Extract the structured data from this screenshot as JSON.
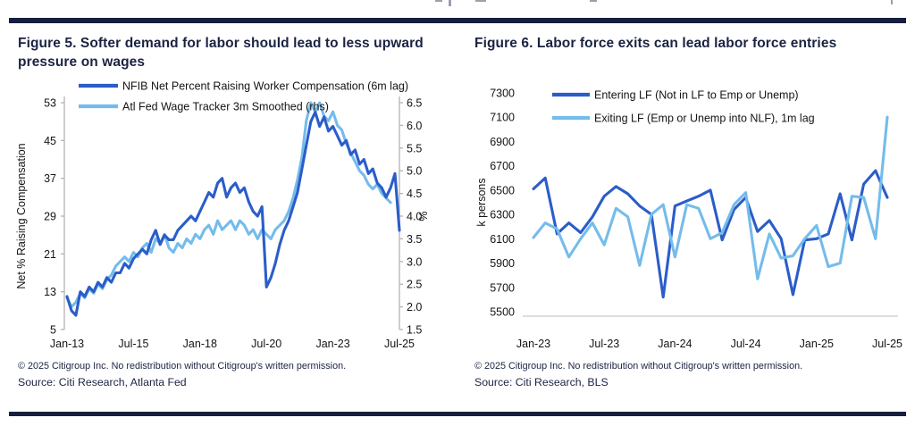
{
  "page": {
    "rule_color": "#171f3d"
  },
  "figure5": {
    "title": "Figure 5. Softer demand for labor should lead to less upward pressure on wages",
    "copyright": "© 2025 Citigroup Inc. No redistribution without Citigroup's written permission.",
    "source": "Source: Citi Research, Atlanta Fed"
  },
  "figure6": {
    "title": "Figure 6. Labor force exits can lead labor force entries",
    "copyright": "© 2025 Citigroup Inc. No redistribution without Citigroup's written permission.",
    "source": "Source: Citi Research, BLS"
  },
  "chart_data": [
    {
      "type": "line",
      "title": "Figure 5. Softer demand for labor should lead to less upward pressure on wages",
      "x_tick_labels": [
        "Jan-13",
        "Jul-15",
        "Jan-18",
        "Jul-20",
        "Jan-23",
        "Jul-25"
      ],
      "x_tick_months": [
        0,
        30,
        60,
        90,
        120,
        150
      ],
      "x_total_months": 150,
      "grid": false,
      "legend_position": "top-left-inside",
      "left_axis": {
        "label": "Net % Raising Compensation",
        "min": 5,
        "max": 53,
        "ticks": [
          "53",
          "45",
          "37",
          "29",
          "21",
          "13",
          "5"
        ]
      },
      "right_axis": {
        "label": "%",
        "min": 1.5,
        "max": 6.5,
        "ticks": [
          "6.5",
          "6.0",
          "5.5",
          "5.0",
          "4.5",
          "4.0",
          "3.5",
          "3.0",
          "2.5",
          "2.0",
          "1.5"
        ]
      },
      "series": [
        {
          "name": "NFIB Net Percent Raising Worker Compensation (6m lag)",
          "color": "#2b5dc9",
          "axis": "left",
          "step_months": 2,
          "values": [
            12,
            9,
            8,
            13,
            12,
            14,
            13,
            15,
            14,
            16,
            15,
            17,
            17,
            19,
            18,
            20,
            21,
            22,
            21,
            24,
            26,
            23,
            25,
            24,
            24,
            26,
            27,
            28,
            29,
            28,
            30,
            32,
            34,
            33,
            36,
            37,
            33,
            35,
            36,
            34,
            35,
            32,
            30,
            29,
            31,
            14,
            16,
            19,
            23,
            26,
            28,
            31,
            34,
            39,
            44,
            49,
            51,
            48,
            50,
            47,
            48,
            46,
            44,
            45,
            42,
            43,
            40,
            41,
            38,
            39,
            36,
            35,
            33,
            35,
            38,
            26
          ]
        },
        {
          "name": "Atl Fed Wage Tracker 3m Smoothed (rhs)",
          "color": "#74bceb",
          "axis": "right",
          "step_months": 2,
          "values": [
            2.2,
            2.0,
            2.1,
            2.3,
            2.2,
            2.4,
            2.3,
            2.5,
            2.4,
            2.6,
            2.7,
            2.9,
            3.0,
            3.1,
            3.0,
            3.2,
            3.1,
            3.3,
            3.4,
            3.2,
            3.5,
            3.4,
            3.6,
            3.3,
            3.2,
            3.4,
            3.3,
            3.5,
            3.4,
            3.6,
            3.5,
            3.7,
            3.8,
            3.6,
            3.9,
            3.7,
            3.8,
            3.9,
            3.7,
            3.9,
            3.8,
            3.6,
            3.7,
            3.5,
            3.7,
            3.6,
            3.5,
            3.7,
            3.8,
            3.9,
            4.1,
            4.4,
            4.8,
            5.3,
            6.1,
            6.5,
            6.3,
            6.5,
            6.2,
            6.1,
            6.3,
            6.0,
            5.9,
            5.6,
            5.4,
            5.2,
            5.0,
            4.9,
            4.7,
            4.6,
            4.7,
            4.5,
            4.4,
            4.3
          ]
        }
      ]
    },
    {
      "type": "line",
      "title": "Figure 6. Labor force exits can lead labor force entries",
      "x_tick_labels": [
        "Jan-23",
        "Jul-23",
        "Jan-24",
        "Jul-24",
        "Jan-25",
        "Jul-25"
      ],
      "x_tick_months": [
        0,
        6,
        12,
        18,
        24,
        30
      ],
      "x_total_months": 30,
      "grid": false,
      "legend_position": "top-left-inside",
      "left_axis": {
        "label": "k persons",
        "min": 5500,
        "max": 7300,
        "ticks": [
          "7300",
          "7100",
          "6900",
          "6700",
          "6500",
          "6300",
          "6100",
          "5900",
          "5700",
          "5500"
        ]
      },
      "series": [
        {
          "name": "Entering LF (Not in LF to Emp or Unemp)",
          "color": "#2b5dc9",
          "axis": "left",
          "step_months": 1,
          "values": [
            6510,
            6600,
            6140,
            6230,
            6150,
            6280,
            6450,
            6530,
            6470,
            6370,
            6300,
            5620,
            6370,
            6410,
            6450,
            6500,
            6090,
            6340,
            6440,
            6160,
            6250,
            6100,
            5640,
            6090,
            6100,
            6140,
            6470,
            6090,
            6550,
            6660,
            6440
          ]
        },
        {
          "name": "Exiting LF (Emp or Unemp into NLF), 1m lag",
          "color": "#74bceb",
          "axis": "left",
          "step_months": 1,
          "values": [
            6110,
            6230,
            6180,
            5950,
            6100,
            6230,
            6050,
            6350,
            6280,
            5880,
            6300,
            6380,
            5950,
            6380,
            6350,
            6100,
            6150,
            6380,
            6480,
            5770,
            6140,
            5940,
            5960,
            6100,
            6210,
            5870,
            5900,
            6450,
            6440,
            6100,
            7100
          ]
        }
      ]
    }
  ]
}
